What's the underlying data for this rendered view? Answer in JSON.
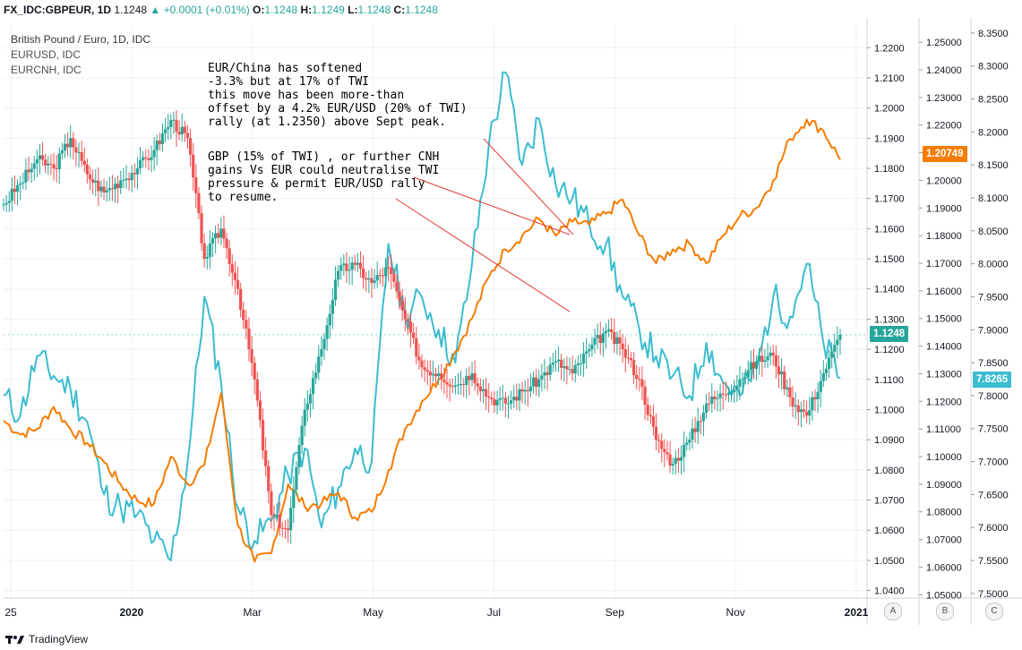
{
  "header": {
    "symbol": "FX_IDC:GBPEUR, 1D",
    "last": "1.1248",
    "change": "▲ +0.0001 (+0.01%)",
    "o_label": "O:",
    "o": "1.1248",
    "h_label": "H:",
    "h": "1.1249",
    "l_label": "L:",
    "l": "1.1248",
    "c_label": "C:",
    "c": "1.1248"
  },
  "legend": {
    "main": "British Pound / Euro, 1D, IDC",
    "series_b": "EURUSD, IDC",
    "series_c": "EURCNH, IDC"
  },
  "notes": {
    "note1": "EUR/China has softened\n-3.3% but at 17% of TWI\nthis move has been more-than\noffset by a 4.2% EUR/USD (20% of TWI)\nrally (at 1.2350) above Sept peak.",
    "note2": "GBP (15% of TWI) , or further CNH\ngains Vs EUR could neutralise TWI\npressure & permit EUR/USD rally\nto resume."
  },
  "price_tags": {
    "gbpeur": "1.1248",
    "eurusd": "1.20749",
    "eurcnh": "7.8265"
  },
  "axis_buttons": [
    "A",
    "B",
    "C"
  ],
  "branding": "TradingView",
  "colors": {
    "candle_up": "#26a69a",
    "candle_down": "#ef5350",
    "eurusd": "#f57c00",
    "eurcnh": "#3bbcd0",
    "annotation_line": "#e53935",
    "grid": "#eef0f3"
  },
  "chart_data": {
    "type": "line",
    "xlabels": [
      "25",
      "2020",
      "Mar",
      "May",
      "Jul",
      "Sep",
      "Nov",
      "2021"
    ],
    "axis_a": {
      "label": "GBPEUR",
      "ticks": [
        "1.2200",
        "1.2100",
        "1.2000",
        "1.1900",
        "1.1800",
        "1.1700",
        "1.1600",
        "1.1500",
        "1.1400",
        "1.1300",
        "1.1200",
        "1.1100",
        "1.1000",
        "1.0900",
        "1.0800",
        "1.0700",
        "1.0600",
        "1.0500",
        "1.0400"
      ],
      "range": [
        1.0375,
        1.2275
      ]
    },
    "axis_b": {
      "label": "EURUSD",
      "ticks": [
        "1.25000",
        "1.24000",
        "1.23000",
        "1.22000",
        "1.21000",
        "1.20000",
        "1.19000",
        "1.18000",
        "1.17000",
        "1.16000",
        "1.15000",
        "1.14000",
        "1.13000",
        "1.12000",
        "1.11000",
        "1.10000",
        "1.09000",
        "1.08000",
        "1.07000",
        "1.06000",
        "1.05000"
      ],
      "range": [
        1.0488,
        1.2562
      ]
    },
    "axis_c": {
      "label": "EURCNH",
      "ticks": [
        "8.3500",
        "8.3000",
        "8.2500",
        "8.2000",
        "8.1500",
        "8.1000",
        "8.0500",
        "8.0000",
        "7.9500",
        "7.9000",
        "7.8500",
        "7.8000",
        "7.7500",
        "7.7000",
        "7.6500",
        "7.6000",
        "7.5500",
        "7.5000"
      ],
      "range": [
        7.493,
        8.362
      ]
    },
    "series": [
      {
        "name": "British Pound / Euro, 1D, IDC",
        "kind": "candles",
        "x": [
          0,
          2,
          4,
          6,
          8,
          10,
          12,
          14,
          16,
          18,
          20,
          22,
          24,
          26,
          28,
          30,
          32,
          34,
          36,
          38,
          40,
          42,
          44,
          46,
          48,
          50,
          52,
          54,
          56,
          58,
          60,
          62,
          64,
          66,
          68,
          70,
          72,
          74,
          76,
          78,
          80,
          82,
          84,
          86,
          88,
          90,
          92,
          94,
          96,
          98,
          100
        ],
        "values": [
          1.168,
          1.175,
          1.183,
          1.18,
          1.19,
          1.178,
          1.172,
          1.176,
          1.18,
          1.186,
          1.196,
          1.19,
          1.15,
          1.16,
          1.14,
          1.11,
          1.065,
          1.06,
          1.1,
          1.12,
          1.146,
          1.148,
          1.142,
          1.147,
          1.13,
          1.114,
          1.112,
          1.108,
          1.112,
          1.104,
          1.102,
          1.106,
          1.11,
          1.116,
          1.112,
          1.12,
          1.126,
          1.12,
          1.11,
          1.09,
          1.082,
          1.09,
          1.102,
          1.105,
          1.11,
          1.116,
          1.118,
          1.104,
          1.098,
          1.112,
          1.1248
        ]
      },
      {
        "name": "EURUSD, IDC",
        "x": [
          0,
          2,
          4,
          6,
          8,
          10,
          12,
          14,
          16,
          18,
          20,
          22,
          24,
          26,
          28,
          30,
          32,
          34,
          36,
          38,
          40,
          42,
          44,
          46,
          48,
          50,
          52,
          54,
          56,
          58,
          60,
          62,
          64,
          66,
          68,
          70,
          72,
          74,
          76,
          78,
          80,
          82,
          84,
          86,
          88,
          90,
          92,
          94,
          96,
          98,
          100
        ],
        "values": [
          1.113,
          1.108,
          1.11,
          1.118,
          1.11,
          1.105,
          1.098,
          1.09,
          1.084,
          1.083,
          1.1,
          1.09,
          1.097,
          1.123,
          1.075,
          1.062,
          1.065,
          1.09,
          1.082,
          1.083,
          1.087,
          1.078,
          1.08,
          1.095,
          1.11,
          1.12,
          1.128,
          1.138,
          1.15,
          1.165,
          1.175,
          1.18,
          1.186,
          1.18,
          1.185,
          1.184,
          1.188,
          1.193,
          1.18,
          1.17,
          1.175,
          1.177,
          1.17,
          1.18,
          1.187,
          1.19,
          1.2,
          1.215,
          1.222,
          1.218,
          1.20749
        ]
      },
      {
        "name": "EURCNH, IDC",
        "x": [
          0,
          2,
          4,
          6,
          8,
          10,
          12,
          14,
          16,
          18,
          20,
          22,
          24,
          26,
          28,
          30,
          32,
          34,
          36,
          38,
          40,
          42,
          44,
          46,
          48,
          50,
          52,
          54,
          56,
          58,
          60,
          62,
          64,
          66,
          68,
          70,
          72,
          74,
          76,
          78,
          80,
          82,
          84,
          86,
          88,
          90,
          92,
          94,
          96,
          98,
          100
        ],
        "values": [
          7.8,
          7.77,
          7.86,
          7.83,
          7.81,
          7.76,
          7.65,
          7.63,
          7.62,
          7.58,
          7.55,
          7.7,
          7.95,
          7.82,
          7.63,
          7.58,
          7.61,
          7.68,
          7.72,
          7.6,
          7.66,
          7.72,
          7.7,
          8.03,
          7.92,
          7.95,
          7.9,
          7.85,
          8.0,
          8.18,
          8.29,
          8.15,
          8.22,
          8.12,
          8.1,
          8.06,
          8.03,
          7.95,
          7.9,
          7.86,
          7.83,
          7.8,
          7.88,
          7.82,
          7.8,
          7.84,
          7.95,
          7.92,
          8.0,
          7.88,
          7.8265
        ]
      }
    ]
  }
}
